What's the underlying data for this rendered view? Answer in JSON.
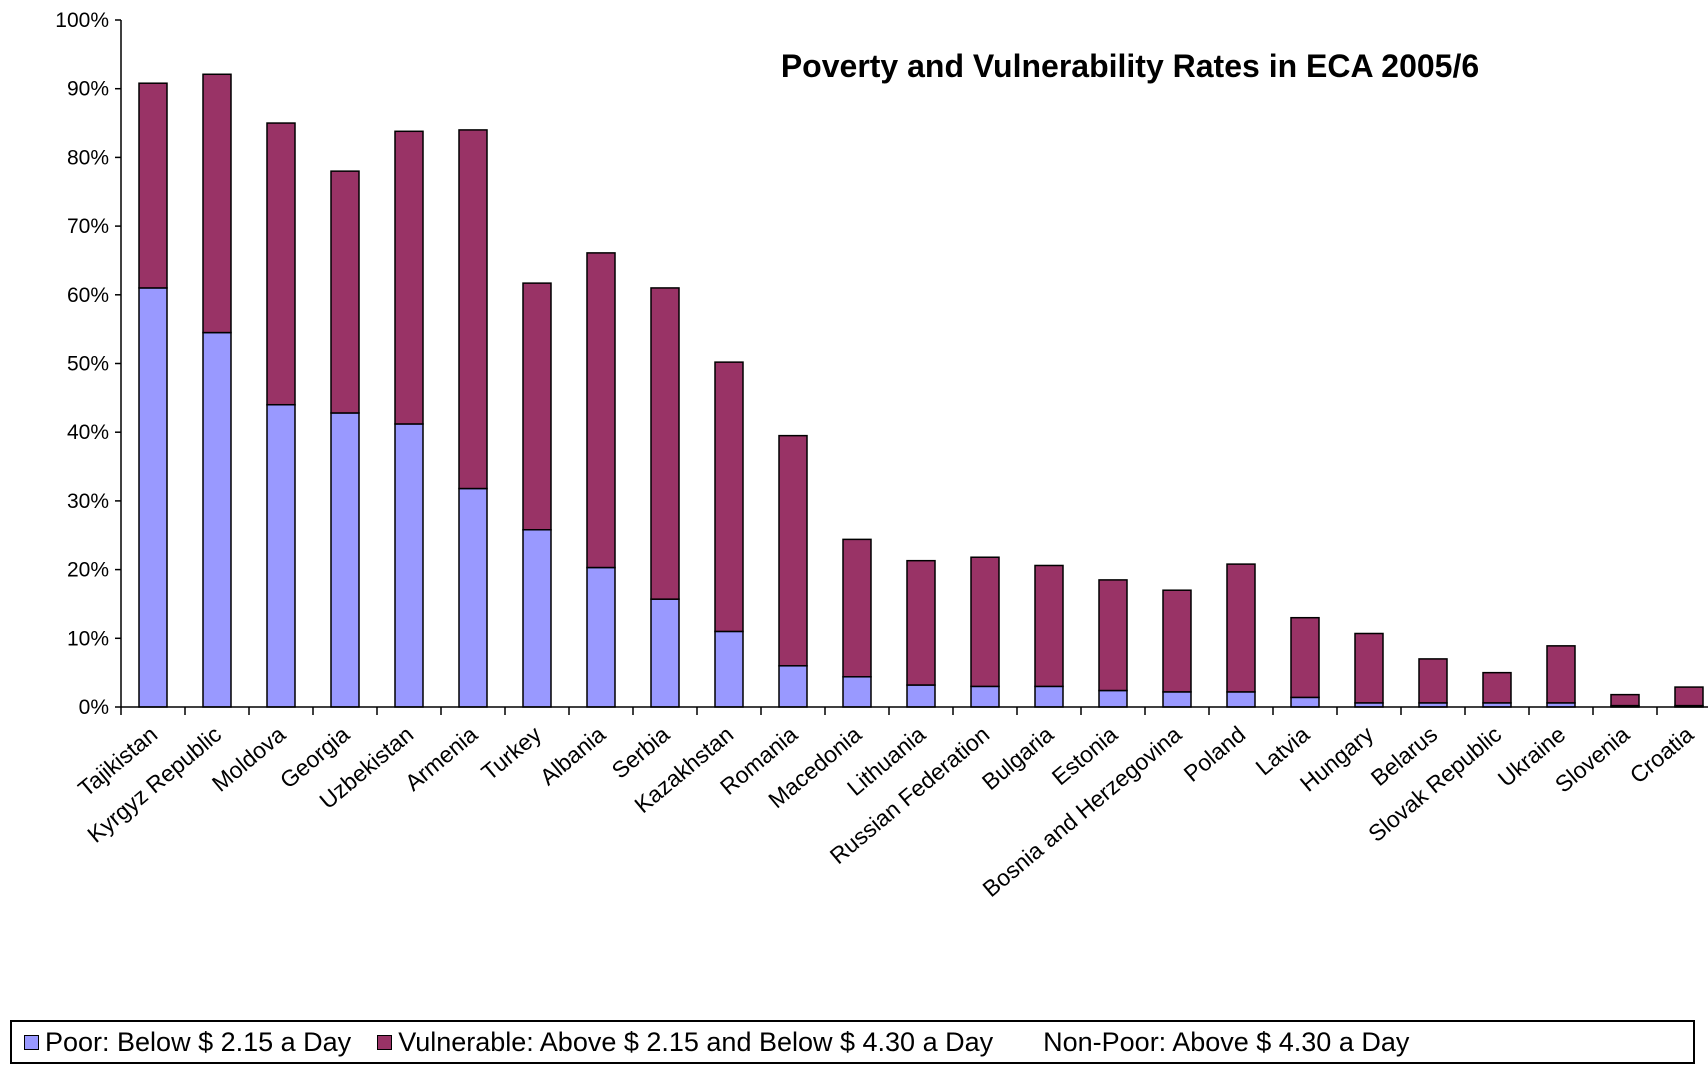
{
  "chart_data": {
    "type": "bar",
    "stacked": true,
    "title": "Poverty and Vulnerability  Rates in ECA 2005/6",
    "xlabel": "",
    "ylabel": "",
    "ylim": [
      0,
      100
    ],
    "y_tick_format": "percent",
    "y_ticks": [
      "0%",
      "10%",
      "20%",
      "30%",
      "40%",
      "50%",
      "60%",
      "70%",
      "80%",
      "90%",
      "100%"
    ],
    "grid": false,
    "legend_position": "bottom",
    "categories": [
      "Tajikistan",
      "Kyrgyz Republic",
      "Moldova",
      "Georgia",
      "Uzbekistan",
      "Armenia",
      "Turkey",
      "Albania",
      "Serbia",
      "Kazakhstan",
      "Romania",
      "Macedonia",
      "Lithuania",
      "Russian Federation",
      "Bulgaria",
      "Estonia",
      "Bosnia and Herzegovina",
      "Poland",
      "Latvia",
      "Hungary",
      "Belarus",
      "Slovak Republic",
      "Ukraine",
      "Slovenia",
      "Croatia"
    ],
    "series": [
      {
        "name": "Poor: Below $ 2.15 a Day",
        "color": "#9999ff",
        "values": [
          61,
          54.5,
          44,
          42.8,
          41.2,
          31.8,
          25.8,
          20.3,
          15.7,
          11,
          6,
          4.4,
          3.2,
          3,
          3,
          2.4,
          2.2,
          2.2,
          1.4,
          0.6,
          0.6,
          0.6,
          0.6,
          0.2,
          0.2
        ]
      },
      {
        "name": "Vulnerable: Above $ 2.15 and Below $ 4.30 a Day",
        "color": "#993366",
        "values": [
          29.8,
          37.6,
          41,
          35.2,
          42.6,
          52.2,
          35.9,
          45.8,
          45.3,
          39.2,
          33.5,
          20,
          18.1,
          18.8,
          17.6,
          16.1,
          14.8,
          18.6,
          11.6,
          10.1,
          6.4,
          4.4,
          8.3,
          1.6,
          2.7
        ]
      }
    ]
  },
  "legend": {
    "items": [
      {
        "label": "Poor: Below $ 2.15 a Day",
        "color": "#9999ff"
      },
      {
        "label": "Vulnerable: Above $ 2.15 and Below $ 4.30 a Day",
        "color": "#993366"
      },
      {
        "label": "Non-Poor: Above $ 4.30 a Day"
      }
    ]
  }
}
